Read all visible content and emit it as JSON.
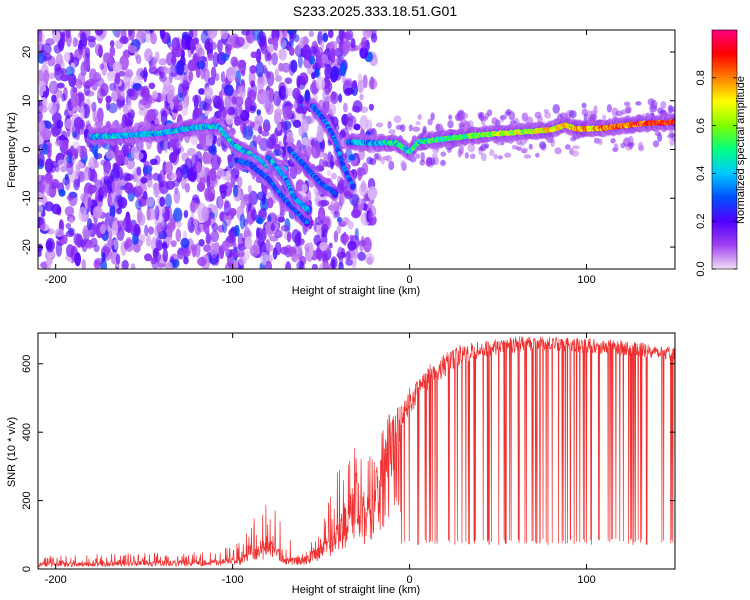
{
  "title": "S233.2025.333.18.51.G01",
  "chart_data": [
    {
      "type": "heatmap",
      "name": "spectrogram",
      "xlabel": "Height of straight line (km)",
      "ylabel": "Frequency (Hz)",
      "xlim": [
        -210,
        150
      ],
      "ylim": [
        -24.5,
        24.5
      ],
      "xticks": [
        -200,
        -100,
        0,
        100
      ],
      "xtick_labels": [
        "-200",
        "-100",
        "0",
        "100"
      ],
      "yticks": [
        -20,
        -10,
        0,
        10,
        20
      ],
      "ytick_labels": [
        "-20",
        "-10",
        "0",
        "10",
        "20"
      ],
      "colorbar": {
        "label": "Normalized spectral amplitude",
        "range": [
          0,
          1
        ],
        "ticks": [
          0.0,
          0.2,
          0.4,
          0.6,
          0.8
        ],
        "tick_labels": [
          "0.0",
          "0.2",
          "0.4",
          "0.6",
          "0.8"
        ],
        "colors": [
          "#f0e0f8",
          "#a040f0",
          "#5000ff",
          "#0050ff",
          "#00c8ff",
          "#00ff80",
          "#80ff00",
          "#ffff00",
          "#ff8000",
          "#ff0000",
          "#ff0080"
        ]
      },
      "ridges": [
        {
          "points": [
            [
              -180,
              2.6
            ],
            [
              -160,
              2.9
            ],
            [
              -140,
              3.4
            ],
            [
              -120,
              4.6
            ],
            [
              -108,
              4.8
            ],
            [
              -100,
              1.0
            ],
            [
              -90,
              -1.0
            ],
            [
              -80,
              -3.5
            ],
            [
              -70,
              -4.0
            ]
          ],
          "amplitude": 0.45
        },
        {
          "points": [
            [
              -98,
              -2.2
            ],
            [
              -90,
              -3.0
            ],
            [
              -80,
              -6.0
            ],
            [
              -70,
              -10.5
            ],
            [
              -58,
              -15.0
            ]
          ],
          "amplitude": 0.33
        },
        {
          "points": [
            [
              -80,
              -1.5
            ],
            [
              -70,
              -6.0
            ],
            [
              -65,
              -10.0
            ],
            [
              -57,
              -12.5
            ]
          ],
          "amplitude": 0.42
        },
        {
          "points": [
            [
              -55,
              9.0
            ],
            [
              -48,
              6.0
            ],
            [
              -42,
              2.0
            ],
            [
              -38,
              -3.0
            ],
            [
              -32,
              -7.5
            ]
          ],
          "amplitude": 0.36
        },
        {
          "points": [
            [
              -68,
              0.0
            ],
            [
              -60,
              -3.0
            ],
            [
              -50,
              -7.0
            ],
            [
              -42,
              -9.0
            ]
          ],
          "amplitude": 0.34
        },
        {
          "points": [
            [
              -35,
              1.5
            ],
            [
              -20,
              1.3
            ],
            [
              -8,
              1.4
            ],
            [
              0,
              -0.5
            ],
            [
              5,
              1.6
            ],
            [
              20,
              2.2
            ],
            [
              40,
              3.0
            ],
            [
              60,
              3.5
            ],
            [
              80,
              4.0
            ],
            [
              88,
              5.0
            ],
            [
              95,
              4.2
            ],
            [
              110,
              4.4
            ],
            [
              130,
              5.3
            ],
            [
              150,
              5.6
            ]
          ],
          "amplitude": 0.82
        }
      ]
    },
    {
      "type": "line",
      "name": "snr",
      "xlabel": "Height of straight line (km)",
      "ylabel": "SNR (10 * v/v)",
      "xlim": [
        -210,
        150
      ],
      "ylim": [
        0,
        690
      ],
      "xticks": [
        -200,
        -100,
        0,
        100
      ],
      "xtick_labels": [
        "-200",
        "-100",
        "0",
        "100"
      ],
      "yticks": [
        0,
        200,
        400,
        600
      ],
      "ytick_labels": [
        "0",
        "200",
        "400",
        "600"
      ],
      "color": "#f03030",
      "envelope": {
        "x": [
          -210,
          -150,
          -110,
          -95,
          -85,
          -80,
          -70,
          -60,
          -50,
          -40,
          -32,
          -30,
          -25,
          -15,
          -10,
          0,
          10,
          20,
          30,
          45,
          60,
          80,
          100,
          120,
          150
        ],
        "base": [
          15,
          20,
          22,
          30,
          60,
          80,
          30,
          30,
          60,
          120,
          200,
          250,
          160,
          300,
          380,
          450,
          520,
          560,
          600,
          620,
          630,
          640,
          630,
          625,
          610
        ],
        "spike": [
          40,
          50,
          50,
          80,
          180,
          230,
          120,
          50,
          120,
          300,
          440,
          350,
          300,
          420,
          480,
          530,
          600,
          630,
          660,
          670,
          680,
          680,
          675,
          670,
          650
        ]
      },
      "dropout_floor": 80,
      "dropout_start": -5
    }
  ]
}
